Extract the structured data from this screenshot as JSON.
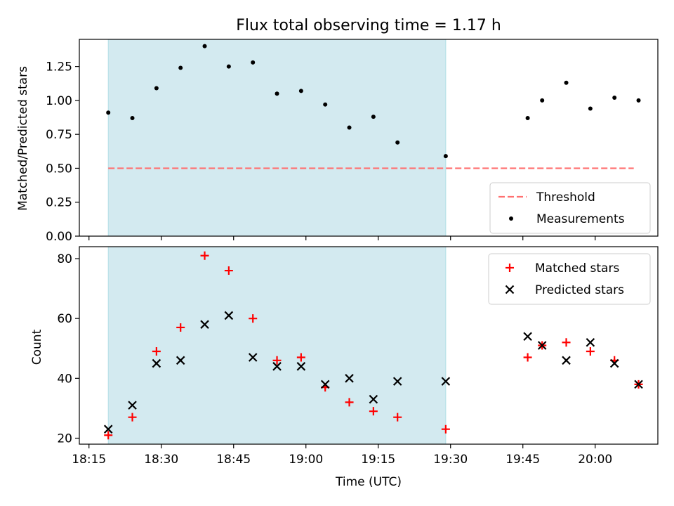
{
  "chart_data": [
    {
      "type": "scatter",
      "title": "Flux total observing time = 1.17 h",
      "xlabel": "",
      "ylabel": "Matched/Predicted stars",
      "ylim": [
        0,
        1.45
      ],
      "yticks": [
        "0.00",
        "0.25",
        "0.50",
        "0.75",
        "1.00",
        "1.25"
      ],
      "shaded_span": [
        "18:19",
        "19:29"
      ],
      "legend_position": "lower-right",
      "threshold": {
        "name": "Threshold",
        "value": 0.5,
        "x_range": [
          "18:19",
          "20:08"
        ],
        "color": "#ff7070"
      },
      "series": [
        {
          "name": "Measurements",
          "marker": "dot",
          "color": "#000000",
          "points": [
            {
              "x": "18:19",
              "y": 0.91
            },
            {
              "x": "18:24",
              "y": 0.87
            },
            {
              "x": "18:29",
              "y": 1.09
            },
            {
              "x": "18:34",
              "y": 1.24
            },
            {
              "x": "18:39",
              "y": 1.4
            },
            {
              "x": "18:44",
              "y": 1.25
            },
            {
              "x": "18:49",
              "y": 1.28
            },
            {
              "x": "18:54",
              "y": 1.05
            },
            {
              "x": "18:59",
              "y": 1.07
            },
            {
              "x": "19:04",
              "y": 0.97
            },
            {
              "x": "19:09",
              "y": 0.8
            },
            {
              "x": "19:14",
              "y": 0.88
            },
            {
              "x": "19:19",
              "y": 0.69
            },
            {
              "x": "19:29",
              "y": 0.59
            },
            {
              "x": "19:46",
              "y": 0.87
            },
            {
              "x": "19:49",
              "y": 1.0
            },
            {
              "x": "19:54",
              "y": 1.13
            },
            {
              "x": "19:59",
              "y": 0.94
            },
            {
              "x": "20:04",
              "y": 1.02
            },
            {
              "x": "20:09",
              "y": 1.0
            }
          ]
        }
      ]
    },
    {
      "type": "scatter",
      "title": "",
      "xlabel": "Time (UTC)",
      "ylabel": "Count",
      "ylim": [
        18,
        84
      ],
      "yticks": [
        "20",
        "40",
        "60",
        "80"
      ],
      "xticks": [
        "18:15",
        "18:30",
        "18:45",
        "19:00",
        "19:15",
        "19:30",
        "19:45",
        "20:00"
      ],
      "shaded_span": [
        "18:19",
        "19:29"
      ],
      "legend_position": "top-right",
      "series": [
        {
          "name": "Matched stars",
          "marker": "plus",
          "color": "#ff0000",
          "points": [
            {
              "x": "18:19",
              "y": 21
            },
            {
              "x": "18:24",
              "y": 27
            },
            {
              "x": "18:29",
              "y": 49
            },
            {
              "x": "18:34",
              "y": 57
            },
            {
              "x": "18:39",
              "y": 81
            },
            {
              "x": "18:44",
              "y": 76
            },
            {
              "x": "18:49",
              "y": 60
            },
            {
              "x": "18:54",
              "y": 46
            },
            {
              "x": "18:59",
              "y": 47
            },
            {
              "x": "19:04",
              "y": 37
            },
            {
              "x": "19:09",
              "y": 32
            },
            {
              "x": "19:14",
              "y": 29
            },
            {
              "x": "19:19",
              "y": 27
            },
            {
              "x": "19:29",
              "y": 23
            },
            {
              "x": "19:46",
              "y": 47
            },
            {
              "x": "19:49",
              "y": 51
            },
            {
              "x": "19:54",
              "y": 52
            },
            {
              "x": "19:59",
              "y": 49
            },
            {
              "x": "20:04",
              "y": 46
            },
            {
              "x": "20:09",
              "y": 38
            }
          ]
        },
        {
          "name": "Predicted stars",
          "marker": "x",
          "color": "#000000",
          "points": [
            {
              "x": "18:19",
              "y": 23
            },
            {
              "x": "18:24",
              "y": 31
            },
            {
              "x": "18:29",
              "y": 45
            },
            {
              "x": "18:34",
              "y": 46
            },
            {
              "x": "18:39",
              "y": 58
            },
            {
              "x": "18:44",
              "y": 61
            },
            {
              "x": "18:49",
              "y": 47
            },
            {
              "x": "18:54",
              "y": 44
            },
            {
              "x": "18:59",
              "y": 44
            },
            {
              "x": "19:04",
              "y": 38
            },
            {
              "x": "19:09",
              "y": 40
            },
            {
              "x": "19:14",
              "y": 33
            },
            {
              "x": "19:19",
              "y": 39
            },
            {
              "x": "19:29",
              "y": 39
            },
            {
              "x": "19:46",
              "y": 54
            },
            {
              "x": "19:49",
              "y": 51
            },
            {
              "x": "19:54",
              "y": 46
            },
            {
              "x": "19:59",
              "y": 52
            },
            {
              "x": "20:04",
              "y": 45
            },
            {
              "x": "20:09",
              "y": 38
            }
          ]
        }
      ]
    }
  ],
  "colors": {
    "shade": "#d3eaf0",
    "shade_edge": "#b2dfe6"
  }
}
